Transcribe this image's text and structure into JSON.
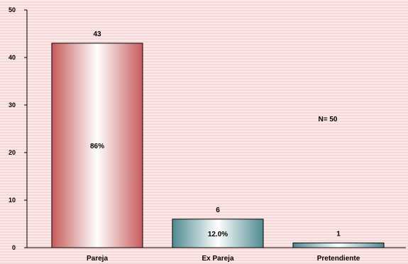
{
  "chart_data": {
    "type": "bar",
    "categories": [
      "Pareja",
      "Ex Pareja",
      "Pretendiente"
    ],
    "values": [
      43,
      6,
      1
    ],
    "value_labels": [
      "43",
      "6",
      "1"
    ],
    "percent_labels": [
      "86%",
      "12.0%",
      ""
    ],
    "ylim": [
      0,
      50
    ],
    "yticks": [
      0,
      10,
      20,
      30,
      40,
      50
    ],
    "annotation": "N= 50",
    "title": "",
    "xlabel": "",
    "ylabel": "",
    "grid": false,
    "colors": {
      "background": "#f6d6d6",
      "background_stripe": "#fbeaea",
      "bar_1_edge": "#c75b5b",
      "bar_2_edge": "#4f8a91",
      "bar_3_edge": "#4f8a91",
      "bar_center": "#ffffff",
      "axis": "#000000",
      "bar_outline": "#000000"
    }
  }
}
